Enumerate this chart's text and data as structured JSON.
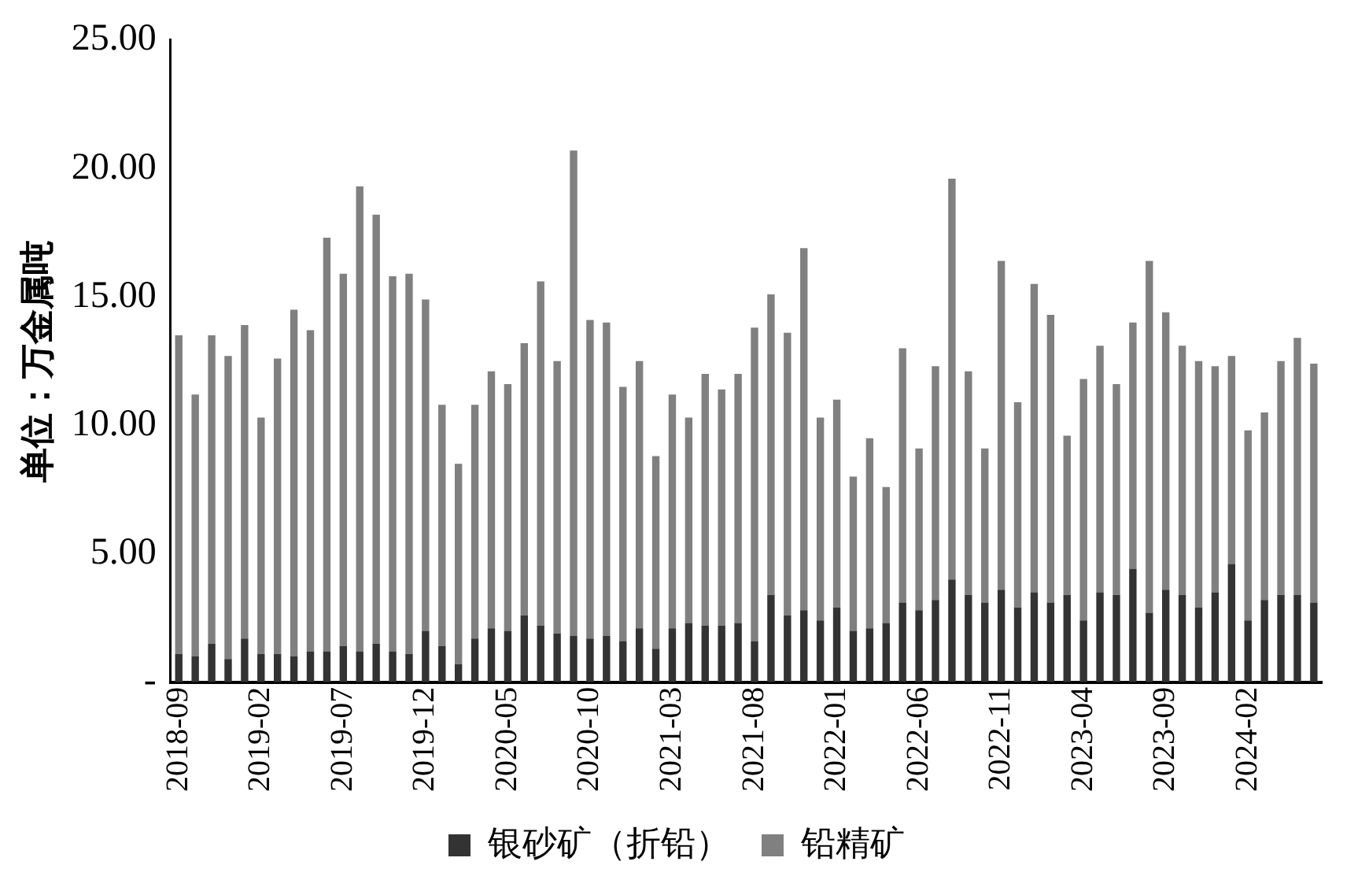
{
  "chart_data": {
    "type": "bar",
    "stacked": true,
    "ylabel": "单位：万金属吨",
    "categories": [
      "2018-09",
      null,
      null,
      null,
      null,
      "2019-02",
      null,
      null,
      null,
      null,
      "2019-07",
      null,
      null,
      null,
      null,
      "2019-12",
      null,
      null,
      null,
      null,
      "2020-05",
      null,
      null,
      null,
      null,
      "2020-10",
      null,
      null,
      null,
      null,
      "2021-03",
      null,
      null,
      null,
      null,
      "2021-08",
      null,
      null,
      null,
      null,
      "2022-01",
      null,
      null,
      null,
      null,
      "2022-06",
      null,
      null,
      null,
      null,
      "2022-11",
      null,
      null,
      null,
      null,
      "2023-04",
      null,
      null,
      null,
      null,
      "2023-09",
      null,
      null,
      null,
      null,
      "2024-02",
      null,
      null,
      null,
      null
    ],
    "series": [
      {
        "name": "银砂矿（折铅）",
        "color": "#333333",
        "values": [
          1.1,
          1.0,
          1.5,
          0.9,
          1.7,
          1.1,
          1.1,
          1.0,
          1.2,
          1.2,
          1.4,
          1.2,
          1.5,
          1.2,
          1.1,
          2.0,
          1.4,
          0.7,
          1.7,
          2.1,
          2.0,
          2.6,
          2.2,
          1.9,
          1.8,
          1.7,
          1.8,
          1.6,
          2.1,
          1.3,
          2.1,
          2.3,
          2.2,
          2.2,
          2.3,
          1.6,
          3.4,
          2.6,
          2.8,
          2.4,
          2.9,
          2.0,
          2.1,
          2.3,
          3.1,
          2.8,
          3.2,
          4.0,
          3.4,
          3.1,
          3.6,
          2.9,
          3.5,
          3.1,
          3.4,
          2.4,
          3.5,
          3.4,
          4.4,
          2.7,
          3.6,
          3.4,
          2.9,
          3.5,
          4.6,
          2.4,
          3.2,
          3.4,
          3.4,
          3.1
        ]
      },
      {
        "name": "铅精矿",
        "color": "#808080",
        "values": [
          12.4,
          10.2,
          12.0,
          11.8,
          12.2,
          9.2,
          11.5,
          13.5,
          12.5,
          16.1,
          14.5,
          18.1,
          16.7,
          14.6,
          14.8,
          12.9,
          9.4,
          7.8,
          9.1,
          10.0,
          9.6,
          10.6,
          13.4,
          10.6,
          18.9,
          12.4,
          12.2,
          9.9,
          10.4,
          7.5,
          9.1,
          8.0,
          9.8,
          9.2,
          9.7,
          12.2,
          11.7,
          11.0,
          14.1,
          7.9,
          8.1,
          6.0,
          7.4,
          5.3,
          9.9,
          6.3,
          9.1,
          15.6,
          8.7,
          6.0,
          12.8,
          8.0,
          12.0,
          11.2,
          6.2,
          9.4,
          9.6,
          8.2,
          9.6,
          13.7,
          10.8,
          9.7,
          9.6,
          8.8,
          8.1,
          7.4,
          7.3,
          9.1,
          10.0,
          9.3
        ]
      }
    ],
    "ylim": [
      0,
      25
    ],
    "yticks": [
      {
        "value": 0,
        "label": "-"
      },
      {
        "value": 5,
        "label": "5.00"
      },
      {
        "value": 10,
        "label": "10.00"
      },
      {
        "value": 15,
        "label": "15.00"
      },
      {
        "value": 20,
        "label": "20.00"
      },
      {
        "value": 25,
        "label": "25.00"
      }
    ],
    "grid": false,
    "legend": "bottom"
  }
}
